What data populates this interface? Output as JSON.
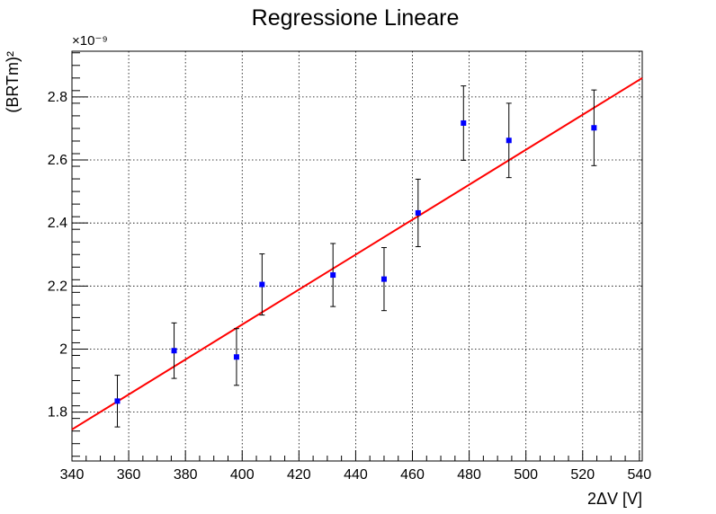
{
  "chart_data": {
    "type": "scatter",
    "title": "Regressione Lineare",
    "xlabel": "2ΔV [V]",
    "ylabel": "(BRTm)²",
    "y_exponent_label": "×10⁻⁹",
    "xlim": [
      340,
      541
    ],
    "ylim": [
      1.645,
      2.945
    ],
    "x_ticks": [
      340,
      360,
      380,
      400,
      420,
      440,
      460,
      480,
      500,
      520,
      540
    ],
    "y_ticks": [
      1.8,
      2.0,
      2.2,
      2.4,
      2.6,
      2.8
    ],
    "y_tick_labels": [
      "1.8",
      "2",
      "2.2",
      "2.4",
      "2.6",
      "2.8"
    ],
    "grid": true,
    "series": [
      {
        "type": "scatter",
        "color": "#0000ff",
        "marker": "square",
        "points": [
          {
            "x": 356,
            "y": 1.835,
            "yerr": 0.082
          },
          {
            "x": 376,
            "y": 1.995,
            "yerr": 0.088
          },
          {
            "x": 398,
            "y": 1.975,
            "yerr": 0.09
          },
          {
            "x": 407,
            "y": 2.205,
            "yerr": 0.097
          },
          {
            "x": 432,
            "y": 2.235,
            "yerr": 0.1
          },
          {
            "x": 450,
            "y": 2.222,
            "yerr": 0.1
          },
          {
            "x": 462,
            "y": 2.432,
            "yerr": 0.107
          },
          {
            "x": 478,
            "y": 2.717,
            "yerr": 0.118
          },
          {
            "x": 494,
            "y": 2.662,
            "yerr": 0.118
          },
          {
            "x": 524,
            "y": 2.702,
            "yerr": 0.12
          }
        ]
      },
      {
        "type": "line",
        "color": "#ff0000",
        "points": [
          {
            "x": 340,
            "y": 1.745
          },
          {
            "x": 541,
            "y": 2.86
          }
        ]
      }
    ]
  }
}
